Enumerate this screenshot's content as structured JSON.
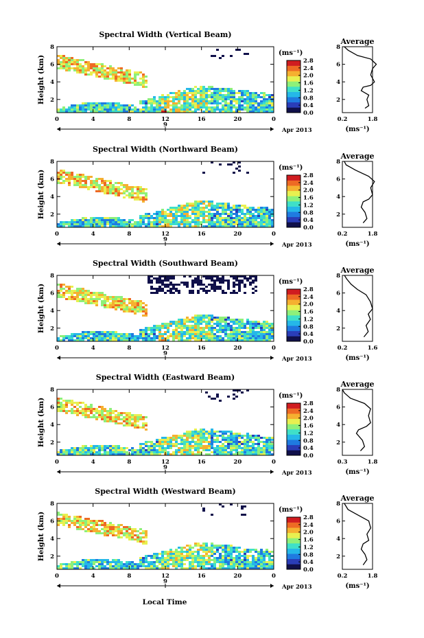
{
  "figure": {
    "xlabel": "Local Time",
    "day_label": "9",
    "date_label": "Apr 2013",
    "colorbar_unit": "(ms⁻¹)",
    "colorbar_ticks": [
      "0.0",
      "0.4",
      "0.8",
      "1.2",
      "1.6",
      "2.0",
      "2.4",
      "2.8"
    ],
    "colormap": [
      "#10104a",
      "#2a3db8",
      "#1f7be0",
      "#25b8e8",
      "#3fe0c8",
      "#8ef07a",
      "#e8f050",
      "#f5b030",
      "#ee6a24",
      "#d01c20"
    ]
  },
  "chart_data": [
    {
      "type": "heatmap",
      "title": "Spectral Width (Vertical Beam)",
      "ylabel": "Height (km)",
      "xlabel": "",
      "x_ticks": [
        "0",
        "4",
        "8",
        "12",
        "16",
        "20",
        "0"
      ],
      "y_ticks": [
        "2",
        "4",
        "6",
        "8"
      ],
      "xlim": [
        0,
        24
      ],
      "ylim": [
        0.5,
        8
      ],
      "value_range": [
        0,
        2.8
      ],
      "avg_title": "Average",
      "avg_xlabel": "(ms⁻¹)",
      "avg_xticks": [
        "0.2",
        "1.8"
      ],
      "avg_yticks": [
        "2",
        "4",
        "6",
        "8"
      ],
      "avg_profile": [
        [
          1.4,
          1.0
        ],
        [
          1.6,
          1.3
        ],
        [
          1.5,
          2.0
        ],
        [
          1.6,
          2.5
        ],
        [
          1.2,
          3.0
        ],
        [
          1.3,
          3.4
        ],
        [
          1.7,
          3.6
        ],
        [
          1.9,
          4.0
        ],
        [
          1.7,
          4.8
        ],
        [
          1.8,
          5.5
        ],
        [
          2.0,
          6.0
        ],
        [
          1.7,
          6.6
        ],
        [
          1.0,
          7.0
        ],
        [
          0.5,
          7.6
        ],
        [
          0.3,
          8.0
        ]
      ]
    },
    {
      "type": "heatmap",
      "title": "Spectral Width (Northward Beam)",
      "ylabel": "Height (km)",
      "xlabel": "",
      "x_ticks": [
        "0",
        "4",
        "8",
        "12",
        "16",
        "20",
        "0"
      ],
      "y_ticks": [
        "2",
        "4",
        "6",
        "8"
      ],
      "xlim": [
        0,
        24
      ],
      "ylim": [
        0.5,
        8
      ],
      "value_range": [
        0,
        2.8
      ],
      "avg_title": "Average",
      "avg_xlabel": "(ms⁻¹)",
      "avg_xticks": [
        "0.2",
        "1.8"
      ],
      "avg_yticks": [
        "2",
        "4",
        "6",
        "8"
      ],
      "avg_profile": [
        [
          1.3,
          1.0
        ],
        [
          1.5,
          1.5
        ],
        [
          1.4,
          2.2
        ],
        [
          1.2,
          2.8
        ],
        [
          1.3,
          3.4
        ],
        [
          1.6,
          3.7
        ],
        [
          1.8,
          4.2
        ],
        [
          1.7,
          5.0
        ],
        [
          1.9,
          5.7
        ],
        [
          1.6,
          6.3
        ],
        [
          0.9,
          7.0
        ],
        [
          0.4,
          7.6
        ],
        [
          0.3,
          8.0
        ]
      ]
    },
    {
      "type": "heatmap",
      "title": "Spectral Width (Southward Beam)",
      "ylabel": "Height (km)",
      "xlabel": "",
      "x_ticks": [
        "0",
        "4",
        "8",
        "12",
        "16",
        "20",
        "0"
      ],
      "y_ticks": [
        "2",
        "4",
        "6",
        "8"
      ],
      "xlim": [
        0,
        24
      ],
      "ylim": [
        0.5,
        8
      ],
      "value_range": [
        0,
        2.8
      ],
      "avg_title": "Average",
      "avg_xlabel": "(ms⁻¹)",
      "avg_xticks": [
        "0.2",
        "1.6"
      ],
      "avg_yticks": [
        "2",
        "4",
        "6",
        "8"
      ],
      "avg_profile": [
        [
          1.2,
          1.0
        ],
        [
          1.4,
          1.6
        ],
        [
          1.3,
          2.3
        ],
        [
          1.5,
          3.0
        ],
        [
          1.4,
          3.6
        ],
        [
          1.6,
          4.2
        ],
        [
          1.5,
          5.0
        ],
        [
          1.3,
          5.8
        ],
        [
          0.9,
          6.4
        ],
        [
          0.6,
          7.0
        ],
        [
          0.4,
          7.6
        ],
        [
          0.3,
          8.0
        ]
      ]
    },
    {
      "type": "heatmap",
      "title": "Spectral Width (Eastward Beam)",
      "ylabel": "Height (km)",
      "xlabel": "",
      "x_ticks": [
        "0",
        "4",
        "8",
        "12",
        "16",
        "20",
        "0"
      ],
      "y_ticks": [
        "2",
        "4",
        "6",
        "8"
      ],
      "xlim": [
        0,
        24
      ],
      "ylim": [
        0.5,
        8
      ],
      "value_range": [
        0,
        2.8
      ],
      "avg_title": "Average",
      "avg_xlabel": "(ms⁻¹)",
      "avg_xticks": [
        "0.3",
        "1.8"
      ],
      "avg_yticks": [
        "2",
        "4",
        "6",
        "8"
      ],
      "avg_profile": [
        [
          1.2,
          1.0
        ],
        [
          1.4,
          1.5
        ],
        [
          1.3,
          2.2
        ],
        [
          1.0,
          3.0
        ],
        [
          1.1,
          3.4
        ],
        [
          1.5,
          3.8
        ],
        [
          1.7,
          4.2
        ],
        [
          1.6,
          5.0
        ],
        [
          1.7,
          5.8
        ],
        [
          1.4,
          6.4
        ],
        [
          0.7,
          7.0
        ],
        [
          0.4,
          7.6
        ],
        [
          0.3,
          8.0
        ]
      ]
    },
    {
      "type": "heatmap",
      "title": "Spectral Width (Westward Beam)",
      "ylabel": "Height (km)",
      "xlabel": "Local Time",
      "x_ticks": [
        "0",
        "4",
        "8",
        "12",
        "16",
        "20",
        "0"
      ],
      "y_ticks": [
        "2",
        "4",
        "6",
        "8"
      ],
      "xlim": [
        0,
        24
      ],
      "ylim": [
        0.5,
        8
      ],
      "value_range": [
        0,
        2.8
      ],
      "avg_title": "Average",
      "avg_xlabel": "(ms⁻¹)",
      "avg_xticks": [
        "0.2",
        "1.8"
      ],
      "avg_yticks": [
        "2",
        "4",
        "6",
        "8"
      ],
      "avg_profile": [
        [
          1.3,
          1.0
        ],
        [
          1.5,
          1.6
        ],
        [
          1.4,
          2.2
        ],
        [
          1.2,
          2.8
        ],
        [
          1.3,
          3.4
        ],
        [
          1.6,
          3.8
        ],
        [
          1.5,
          4.5
        ],
        [
          1.7,
          5.2
        ],
        [
          1.6,
          6.0
        ],
        [
          1.0,
          6.7
        ],
        [
          0.5,
          7.3
        ],
        [
          0.3,
          8.0
        ]
      ]
    }
  ]
}
